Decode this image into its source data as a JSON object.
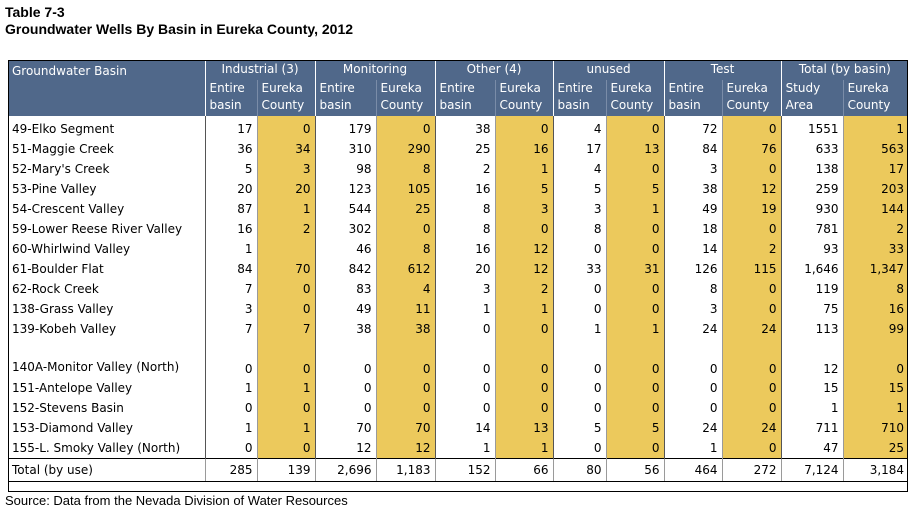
{
  "caption": {
    "line1": "Table 7-3",
    "line2": "Groundwater Wells By Basin in Eureka County, 2012"
  },
  "header": {
    "basin_label": "Groundwater Basin",
    "groups": [
      "Industrial (3)",
      "Monitoring",
      "Other (4)",
      "unused",
      "Test",
      "Total (by basin)"
    ],
    "sub": {
      "entire": "Entire basin",
      "eureka": "Eureka County",
      "study": "Study Area"
    }
  },
  "rows": [
    {
      "basin": "49-Elko Segment",
      "v": [
        "17",
        "0",
        "179",
        "0",
        "38",
        "0",
        "4",
        "0",
        "72",
        "0",
        "1551",
        "1"
      ]
    },
    {
      "basin": "51-Maggie Creek",
      "v": [
        "36",
        "34",
        "310",
        "290",
        "25",
        "16",
        "17",
        "13",
        "84",
        "76",
        "633",
        "563"
      ]
    },
    {
      "basin": "52-Mary's Creek",
      "v": [
        "5",
        "3",
        "98",
        "8",
        "2",
        "1",
        "4",
        "0",
        "3",
        "0",
        "138",
        "17"
      ]
    },
    {
      "basin": "53-Pine Valley",
      "v": [
        "20",
        "20",
        "123",
        "105",
        "16",
        "5",
        "5",
        "5",
        "38",
        "12",
        "259",
        "203"
      ]
    },
    {
      "basin": "54-Crescent Valley",
      "v": [
        "87",
        "1",
        "544",
        "25",
        "8",
        "3",
        "3",
        "1",
        "49",
        "19",
        "930",
        "144"
      ]
    },
    {
      "basin": "59-Lower Reese River Valley",
      "v": [
        "16",
        "2",
        "302",
        "0",
        "8",
        "0",
        "8",
        "0",
        "18",
        "0",
        "781",
        "2"
      ]
    },
    {
      "basin": "60-Whirlwind Valley",
      "v": [
        "1",
        "",
        "46",
        "8",
        "16",
        "12",
        "0",
        "0",
        "14",
        "2",
        "93",
        "33"
      ]
    },
    {
      "basin": "61-Boulder Flat",
      "v": [
        "84",
        "70",
        "842",
        "612",
        "20",
        "12",
        "33",
        "31",
        "126",
        "115",
        "1,646",
        "1,347"
      ]
    },
    {
      "basin": "62-Rock Creek",
      "v": [
        "7",
        "0",
        "83",
        "4",
        "3",
        "2",
        "0",
        "0",
        "8",
        "0",
        "119",
        "8"
      ]
    },
    {
      "basin": "138-Grass Valley",
      "v": [
        "3",
        "0",
        "49",
        "11",
        "1",
        "1",
        "0",
        "0",
        "3",
        "0",
        "75",
        "16"
      ]
    },
    {
      "basin": "139-Kobeh Valley",
      "v": [
        "7",
        "7",
        "38",
        "38",
        "0",
        "0",
        "1",
        "1",
        "24",
        "24",
        "113",
        "99"
      ]
    },
    {
      "basin": "140A-Monitor Valley (North)",
      "v": [
        "0",
        "0",
        "0",
        "0",
        "0",
        "0",
        "0",
        "0",
        "0",
        "0",
        "12",
        "0"
      ]
    },
    {
      "basin": "151-Antelope Valley",
      "v": [
        "1",
        "1",
        "0",
        "0",
        "0",
        "0",
        "0",
        "0",
        "0",
        "0",
        "15",
        "15"
      ]
    },
    {
      "basin": "152-Stevens Basin",
      "v": [
        "0",
        "0",
        "0",
        "0",
        "0",
        "0",
        "0",
        "0",
        "0",
        "0",
        "1",
        "1"
      ]
    },
    {
      "basin": "153-Diamond Valley",
      "v": [
        "1",
        "1",
        "70",
        "70",
        "14",
        "13",
        "5",
        "5",
        "24",
        "24",
        "711",
        "710"
      ]
    },
    {
      "basin": "155-L. Smoky Valley (North)",
      "v": [
        "0",
        "0",
        "12",
        "12",
        "1",
        "1",
        "0",
        "0",
        "1",
        "0",
        "47",
        "25"
      ]
    }
  ],
  "total": {
    "label": "Total (by use)",
    "v": [
      "285",
      "139",
      "2,696",
      "1,183",
      "152",
      "66",
      "80",
      "56",
      "464",
      "272",
      "7,124",
      "3,184"
    ]
  },
  "source": "Source: Data from the Nevada Division of Water Resources"
}
